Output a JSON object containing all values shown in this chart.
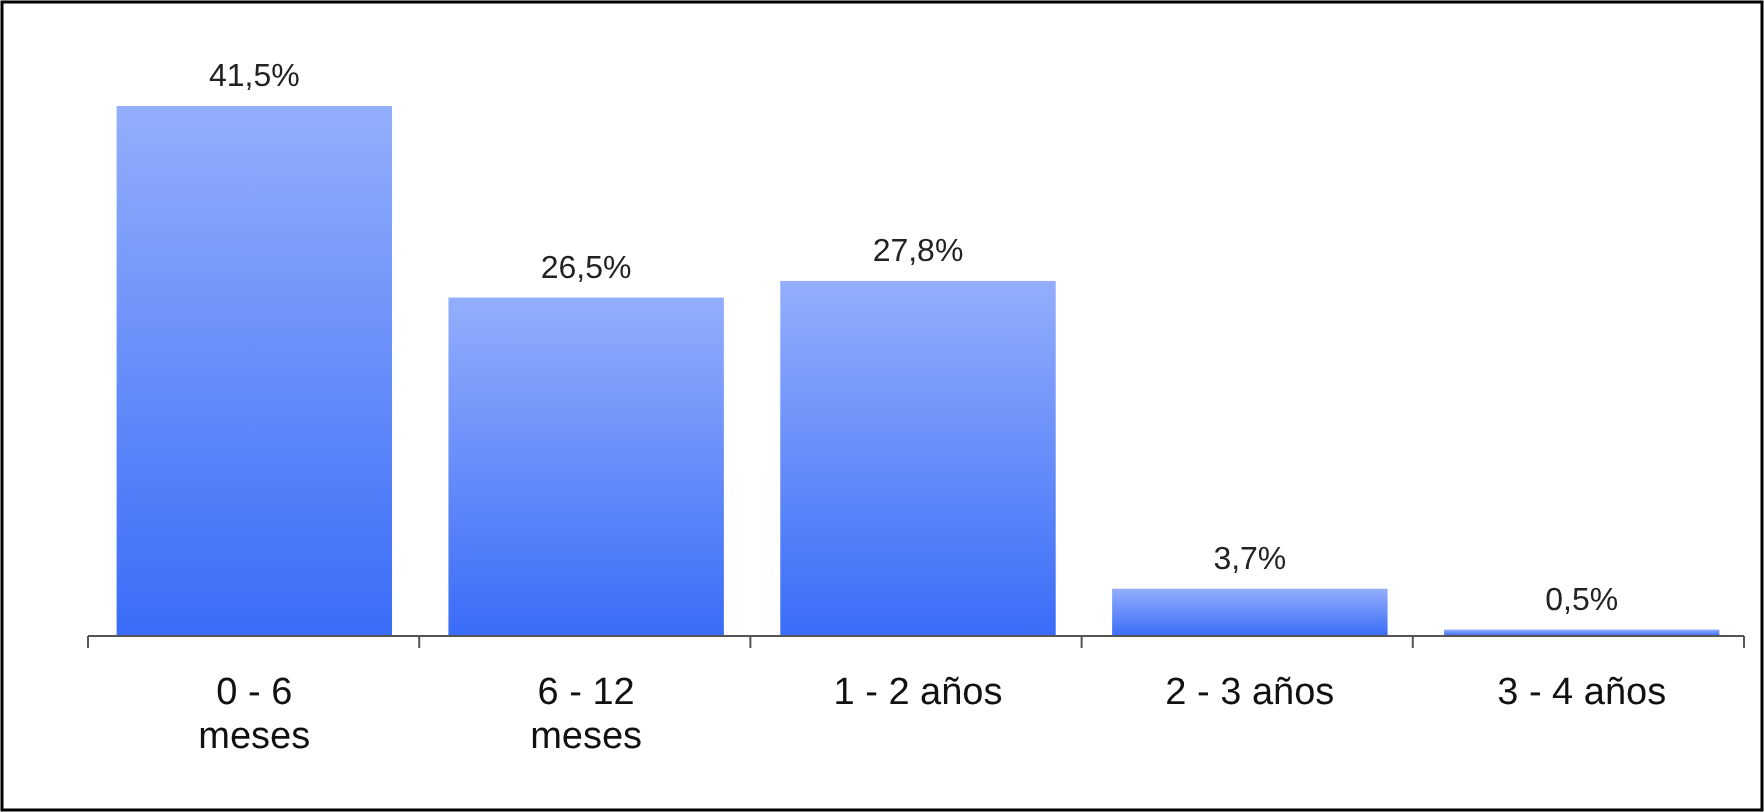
{
  "chart_data": {
    "type": "bar",
    "categories": [
      "0 - 6\nmeses",
      "6 - 12\nmeses",
      "1 - 2 años",
      "2 - 3 años",
      "3 - 4 años"
    ],
    "values": [
      41.5,
      26.5,
      27.8,
      3.7,
      0.5
    ],
    "value_labels": [
      "41,5%",
      "26,5%",
      "27,8%",
      "3,7%",
      "0,5%"
    ],
    "color": "#3a6cf8"
  }
}
